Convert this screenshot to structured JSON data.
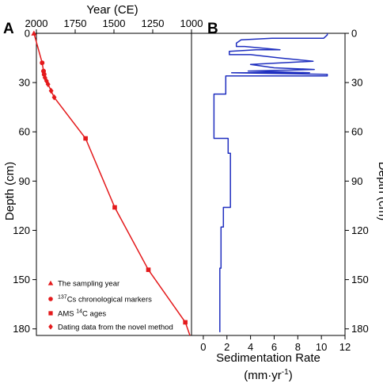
{
  "chart_data": [
    {
      "panel": "A",
      "type": "line",
      "xlabel": "Year (CE)",
      "ylabel": "Depth (cm)",
      "xlim": [
        2000,
        1000
      ],
      "ylim": [
        0,
        184
      ],
      "xticks": [
        "2000",
        "1750",
        "1500",
        "1250",
        "1000"
      ],
      "yticks": [
        "0",
        "30",
        "60",
        "90",
        "120",
        "150",
        "180"
      ],
      "series": [
        {
          "name": "The sampling year",
          "marker": "triangle",
          "color": "#e41a1c",
          "x": [
            2016
          ],
          "y": [
            0
          ]
        },
        {
          "name": "Cs chronological markers",
          "name_prefix": "137",
          "marker": "circle",
          "color": "#e41a1c",
          "x": [
            1963,
            1954,
            1950
          ],
          "y": [
            18,
            23,
            25
          ]
        },
        {
          "name": "AMS C ages",
          "name_mid": "14",
          "marker": "square",
          "color": "#e41a1c",
          "x": [
            1683,
            1495,
            1278,
            1040
          ],
          "y": [
            64,
            106,
            144,
            176
          ]
        },
        {
          "name": "Dating data from the novel method",
          "marker": "diamond",
          "color": "#e41a1c",
          "x": [
            1945,
            1935,
            1925,
            1905,
            1885
          ],
          "y": [
            27,
            29,
            31,
            35,
            39
          ]
        }
      ],
      "line": {
        "color": "#e41a1c",
        "x": [
          2016,
          1963,
          1954,
          1950,
          1945,
          1935,
          1925,
          1905,
          1885,
          1683,
          1495,
          1278,
          1040,
          1010
        ],
        "y": [
          0,
          18,
          23,
          25,
          27,
          29,
          31,
          35,
          39,
          64,
          106,
          144,
          176,
          184
        ]
      }
    },
    {
      "panel": "B",
      "type": "line",
      "xlabel": "Sedimentation Rate",
      "xunit": "(mm·yr",
      "xunit_sup": "-1",
      "xunit_end": ")",
      "ylabel": "Depth (cm)",
      "xlim": [
        -1,
        12
      ],
      "ylim": [
        0,
        184
      ],
      "xticks": [
        "0",
        "2",
        "4",
        "6",
        "8",
        "10",
        "12"
      ],
      "yticks": [
        "0",
        "30",
        "60",
        "90",
        "120",
        "150",
        "180"
      ],
      "series": [
        {
          "name": "",
          "color": "#1f2fbf",
          "x": [
            10.5,
            10.5,
            10.2,
            5.8,
            3.2,
            2.8,
            2.8,
            3.5,
            6.5,
            4.5,
            2.2,
            2.2,
            4.0,
            6.5,
            9.3,
            4.0,
            6.0,
            9.4,
            3.8,
            9.0,
            2.4,
            10.5,
            10.5,
            1.9,
            1.9,
            0.9,
            0.9,
            2.1,
            2.1,
            2.3,
            2.3,
            1.7,
            1.7,
            1.5,
            1.5,
            1.4,
            1.4
          ],
          "y": [
            0,
            1,
            3,
            3,
            4,
            6,
            8,
            8,
            10,
            10,
            11,
            13,
            13,
            15,
            17,
            19,
            21,
            22,
            23,
            24,
            24,
            25,
            26,
            26,
            37,
            37,
            64,
            64,
            73,
            73,
            106,
            106,
            118,
            118,
            143,
            143,
            182
          ]
        }
      ]
    }
  ]
}
